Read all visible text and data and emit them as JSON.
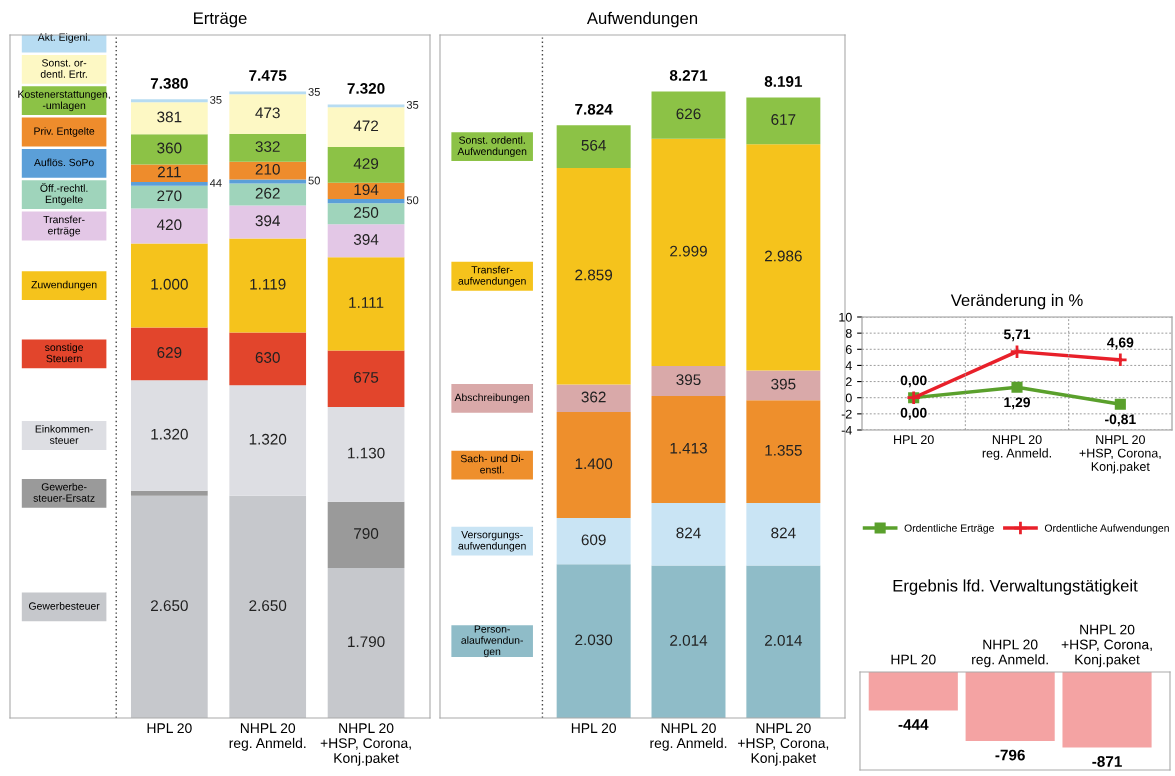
{
  "chart_data": [
    {
      "type": "bar",
      "stacked": true,
      "title": "Erträge",
      "tick_labels": "x",
      "data_labels": true,
      "categories": [
        "HPL 20",
        "NHPL 20\nreg. Anmeld.",
        "NHPL 20\n+HSP, Corona,\nKonj.paket"
      ],
      "series": [
        {
          "name": "Gewerbesteuer",
          "color": "#c6c8cc",
          "values": [
            2650,
            2650,
            1790
          ],
          "value_labels": [
            "2.650",
            "2.650",
            "1.790"
          ]
        },
        {
          "name": "Gewerbe-\nsteuer-Ersatz",
          "color": "#9a9a9a",
          "values": [
            60,
            null,
            790
          ],
          "value_labels": [
            null,
            null,
            "790"
          ]
        },
        {
          "name": "Einkommen-\nsteuer",
          "color": "#dddee3",
          "values": [
            1320,
            1320,
            1130
          ],
          "value_labels": [
            "1.320",
            "1.320",
            "1.130"
          ]
        },
        {
          "name": "sonstige\nSteuern",
          "color": "#e2452c",
          "values": [
            629,
            630,
            675
          ],
          "value_labels": [
            "629",
            "630",
            "675"
          ]
        },
        {
          "name": "Zuwendungen",
          "color": "#f5c31c",
          "values": [
            1000,
            1119,
            1111
          ],
          "value_labels": [
            "1.000",
            "1.119",
            "1.111"
          ]
        },
        {
          "name": "Transfer-\nerträge",
          "color": "#e3c7e6",
          "values": [
            420,
            394,
            394
          ],
          "value_labels": [
            "420",
            "394",
            "394"
          ]
        },
        {
          "name": "Öff.-rechtl.\nEntgelte",
          "color": "#9fd4bb",
          "values": [
            270,
            262,
            250
          ],
          "value_labels": [
            "270",
            "262",
            "250"
          ]
        },
        {
          "name": "Auflös. SoPo",
          "color": "#5b9fd8",
          "values": [
            44,
            50,
            50
          ],
          "value_labels": [
            "44",
            "50",
            "50"
          ]
        },
        {
          "name": "Priv. Entgelte",
          "color": "#ee8c2c",
          "values": [
            211,
            210,
            194
          ],
          "value_labels": [
            "211",
            "210",
            "194"
          ]
        },
        {
          "name": "Kostenerstattungen,\n-umlagen",
          "color": "#8cc246",
          "values": [
            360,
            332,
            429
          ],
          "value_labels": [
            "360",
            "332",
            "429"
          ]
        },
        {
          "name": "Sonst. or-\ndentl. Ertr.",
          "color": "#fdf8c4",
          "values": [
            381,
            473,
            472
          ],
          "value_labels": [
            "381",
            "473",
            "472"
          ]
        },
        {
          "name": "Akt. Eigenl.",
          "color": "#b7dcf2",
          "values": [
            35,
            35,
            35
          ],
          "value_labels": [
            "35",
            "35",
            "35"
          ]
        }
      ],
      "totals": [
        "7.380",
        "7.475",
        "7.320"
      ]
    },
    {
      "type": "bar",
      "stacked": true,
      "title": "Aufwendungen",
      "tick_labels": "x",
      "data_labels": true,
      "categories": [
        "HPL 20",
        "NHPL 20\nreg. Anmeld.",
        "NHPL 20\n+HSP, Corona,\nKonj.paket"
      ],
      "series": [
        {
          "name": "Person-\nalaufwendun-\ngen",
          "color": "#8fbcc8",
          "values": [
            2030,
            2014,
            2014
          ],
          "value_labels": [
            "2.030",
            "2.014",
            "2.014"
          ]
        },
        {
          "name": "Versorgungs-\naufwendungen",
          "color": "#c9e4f4",
          "values": [
            609,
            824,
            824
          ],
          "value_labels": [
            "609",
            "824",
            "824"
          ]
        },
        {
          "name": "Sach- und Di-\nenstl.",
          "color": "#ee8f2c",
          "values": [
            1400,
            1413,
            1355
          ],
          "value_labels": [
            "1.400",
            "1.413",
            "1.355"
          ]
        },
        {
          "name": "Abschreibungen",
          "color": "#d9a9a9",
          "values": [
            362,
            395,
            395
          ],
          "value_labels": [
            "362",
            "395",
            "395"
          ]
        },
        {
          "name": "Transfer-\naufwendungen",
          "color": "#f5c31c",
          "values": [
            2859,
            2999,
            2986
          ],
          "value_labels": [
            "2.859",
            "2.999",
            "2.986"
          ]
        },
        {
          "name": "Sonst. ordentl.\nAufwendungen",
          "color": "#8cc246",
          "values": [
            564,
            626,
            617
          ],
          "value_labels": [
            "564",
            "626",
            "617"
          ]
        }
      ],
      "totals": [
        "7.824",
        "8.271",
        "8.191"
      ]
    },
    {
      "type": "line",
      "title": "Veränderung in %",
      "grid": "y",
      "legend": "bottom",
      "data_labels": true,
      "categories": [
        "HPL 20",
        "NHPL 20\nreg. Anmeld.",
        "NHPL 20\n+HSP, Corona,\nKonj.paket"
      ],
      "ylim": [
        -4,
        10
      ],
      "yticks": [
        -4,
        -2,
        0,
        2,
        4,
        6,
        8,
        10
      ],
      "series": [
        {
          "name": "Ordentliche Erträge",
          "color": "#5aa02c",
          "marker": "square",
          "values": [
            0.0,
            1.29,
            -0.81
          ],
          "value_labels": [
            "0,00",
            "1,29",
            "-0,81"
          ]
        },
        {
          "name": "Ordentliche Aufwendungen",
          "color": "#e8202a",
          "marker": "cross",
          "values": [
            0.0,
            5.71,
            4.69
          ],
          "value_labels": [
            "0,00",
            "5,71",
            "4,69"
          ]
        }
      ]
    },
    {
      "type": "bar",
      "title": "Ergebnis lfd. Verwaltungstätigkeit",
      "tick_labels": "x",
      "data_labels": true,
      "categories": [
        "HPL 20",
        "NHPL 20\nreg. Anmeld.",
        "NHPL 20\n+HSP, Corona,\nKonj.paket"
      ],
      "series": [
        {
          "color": "#f4a3a3",
          "values": [
            -444,
            -796,
            -871
          ],
          "value_labels": [
            "-444",
            "-796",
            "-871"
          ]
        }
      ]
    }
  ]
}
